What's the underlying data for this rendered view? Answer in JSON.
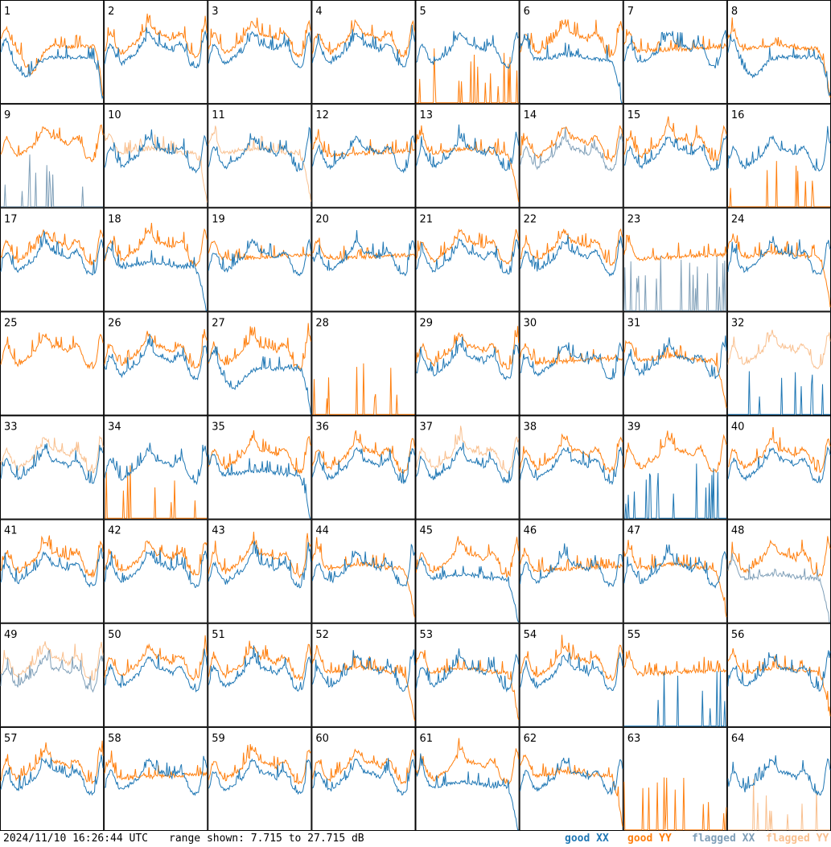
{
  "footer": {
    "timestamp": "2024/11/10 16:26:44 UTC",
    "range_text": "range shown: 7.715 to 27.715 dB"
  },
  "legend": {
    "good_xx": "good XX",
    "good_yy": "good YY",
    "flagged_xx": "flagged XX",
    "flagged_yy": "flagged YY"
  },
  "colors": {
    "good_xx": "#1f77b4",
    "good_yy": "#ff7f0e",
    "flagged_xx": "#7f9fb8",
    "flagged_yy": "#f9c08f",
    "frame": "#000000"
  },
  "chart_data": {
    "type": "line",
    "grid": "8x8 small multiples",
    "ylim_db": [
      7.715,
      27.715
    ],
    "tiles": [
      {
        "n": "1",
        "xx": "good",
        "yy": "good",
        "xx_shape": "rollhigh",
        "yy_shape": "dipmid"
      },
      {
        "n": "2",
        "xx": "good",
        "yy": "good",
        "xx_shape": "normal",
        "yy_shape": "normal"
      },
      {
        "n": "3",
        "xx": "good",
        "yy": "good",
        "xx_shape": "normal",
        "yy_shape": "normal"
      },
      {
        "n": "4",
        "xx": "good",
        "yy": "good",
        "xx_shape": "normal",
        "yy_shape": "normal"
      },
      {
        "n": "5",
        "xx": "good",
        "yy": "good",
        "xx_shape": "normal",
        "yy_shape": "dead"
      },
      {
        "n": "6",
        "xx": "good",
        "yy": "good",
        "xx_shape": "rolloff",
        "yy_shape": "normal"
      },
      {
        "n": "7",
        "xx": "good",
        "yy": "good",
        "xx_shape": "normal",
        "yy_shape": "flat"
      },
      {
        "n": "8",
        "xx": "good",
        "yy": "good",
        "xx_shape": "rollhigh",
        "yy_shape": "rolloff"
      },
      {
        "n": "9",
        "xx": "flagged",
        "yy": "good",
        "xx_shape": "dead",
        "yy_shape": "normal"
      },
      {
        "n": "10",
        "xx": "good",
        "yy": "flagged",
        "xx_shape": "normal",
        "yy_shape": "rolloff"
      },
      {
        "n": "11",
        "xx": "good",
        "yy": "flagged",
        "xx_shape": "normal",
        "yy_shape": "rolloff"
      },
      {
        "n": "12",
        "xx": "good",
        "yy": "good",
        "xx_shape": "normal",
        "yy_shape": "flat"
      },
      {
        "n": "13",
        "xx": "good",
        "yy": "good",
        "xx_shape": "normal",
        "yy_shape": "rolloff"
      },
      {
        "n": "14",
        "xx": "flagged",
        "yy": "good",
        "xx_shape": "normal",
        "yy_shape": "normal"
      },
      {
        "n": "15",
        "xx": "good",
        "yy": "good",
        "xx_shape": "normal",
        "yy_shape": "normal"
      },
      {
        "n": "16",
        "xx": "good",
        "yy": "good",
        "xx_shape": "normal",
        "yy_shape": "dead"
      },
      {
        "n": "17",
        "xx": "good",
        "yy": "good",
        "xx_shape": "normal",
        "yy_shape": "normal"
      },
      {
        "n": "18",
        "xx": "good",
        "yy": "good",
        "xx_shape": "rolloff",
        "yy_shape": "normal"
      },
      {
        "n": "19",
        "xx": "good",
        "yy": "good",
        "xx_shape": "normal",
        "yy_shape": "flat"
      },
      {
        "n": "20",
        "xx": "good",
        "yy": "good",
        "xx_shape": "normal",
        "yy_shape": "flat"
      },
      {
        "n": "21",
        "xx": "good",
        "yy": "good",
        "xx_shape": "normal",
        "yy_shape": "normal"
      },
      {
        "n": "22",
        "xx": "good",
        "yy": "good",
        "xx_shape": "normal",
        "yy_shape": "normal"
      },
      {
        "n": "23",
        "xx": "flagged",
        "yy": "good",
        "xx_shape": "dead",
        "yy_shape": "flat"
      },
      {
        "n": "24",
        "xx": "good",
        "yy": "good",
        "xx_shape": "normal",
        "yy_shape": "rolloff"
      },
      {
        "n": "25",
        "xx": "none",
        "yy": "good",
        "xx_shape": "none",
        "yy_shape": "normal"
      },
      {
        "n": "26",
        "xx": "good",
        "yy": "good",
        "xx_shape": "normal",
        "yy_shape": "normal"
      },
      {
        "n": "27",
        "xx": "good",
        "yy": "good",
        "xx_shape": "rollhigh",
        "yy_shape": "normal"
      },
      {
        "n": "28",
        "xx": "none",
        "yy": "good",
        "xx_shape": "none",
        "yy_shape": "dead"
      },
      {
        "n": "29",
        "xx": "good",
        "yy": "good",
        "xx_shape": "normal",
        "yy_shape": "normal"
      },
      {
        "n": "30",
        "xx": "good",
        "yy": "good",
        "xx_shape": "normal",
        "yy_shape": "flat"
      },
      {
        "n": "31",
        "xx": "good",
        "yy": "good",
        "xx_shape": "normal",
        "yy_shape": "rolloff"
      },
      {
        "n": "32",
        "xx": "good",
        "yy": "flagged",
        "xx_shape": "dead",
        "yy_shape": "normal"
      },
      {
        "n": "33",
        "xx": "good",
        "yy": "flagged",
        "xx_shape": "normal",
        "yy_shape": "normal"
      },
      {
        "n": "34",
        "xx": "good",
        "yy": "good",
        "xx_shape": "normal",
        "yy_shape": "dead"
      },
      {
        "n": "35",
        "xx": "good",
        "yy": "good",
        "xx_shape": "rolloff",
        "yy_shape": "normal"
      },
      {
        "n": "36",
        "xx": "good",
        "yy": "good",
        "xx_shape": "normal",
        "yy_shape": "normal"
      },
      {
        "n": "37",
        "xx": "good",
        "yy": "flagged",
        "xx_shape": "normal",
        "yy_shape": "normal"
      },
      {
        "n": "38",
        "xx": "good",
        "yy": "good",
        "xx_shape": "normal",
        "yy_shape": "normal"
      },
      {
        "n": "39",
        "xx": "good",
        "yy": "good",
        "xx_shape": "dead",
        "yy_shape": "normal"
      },
      {
        "n": "40",
        "xx": "good",
        "yy": "good",
        "xx_shape": "normal",
        "yy_shape": "normal"
      },
      {
        "n": "41",
        "xx": "good",
        "yy": "good",
        "xx_shape": "normal",
        "yy_shape": "normal"
      },
      {
        "n": "42",
        "xx": "good",
        "yy": "good",
        "xx_shape": "normal",
        "yy_shape": "normal"
      },
      {
        "n": "43",
        "xx": "good",
        "yy": "good",
        "xx_shape": "normal",
        "yy_shape": "normal"
      },
      {
        "n": "44",
        "xx": "good",
        "yy": "good",
        "xx_shape": "normal",
        "yy_shape": "rolloff"
      },
      {
        "n": "45",
        "xx": "good",
        "yy": "good",
        "xx_shape": "rolloff",
        "yy_shape": "normal"
      },
      {
        "n": "46",
        "xx": "good",
        "yy": "good",
        "xx_shape": "normal",
        "yy_shape": "flat"
      },
      {
        "n": "47",
        "xx": "good",
        "yy": "good",
        "xx_shape": "normal",
        "yy_shape": "rolloff"
      },
      {
        "n": "48",
        "xx": "flagged",
        "yy": "good",
        "xx_shape": "rolloff",
        "yy_shape": "normal"
      },
      {
        "n": "49",
        "xx": "flagged",
        "yy": "flagged",
        "xx_shape": "normal",
        "yy_shape": "normal"
      },
      {
        "n": "50",
        "xx": "good",
        "yy": "good",
        "xx_shape": "normal",
        "yy_shape": "normal"
      },
      {
        "n": "51",
        "xx": "good",
        "yy": "good",
        "xx_shape": "normal",
        "yy_shape": "normal"
      },
      {
        "n": "52",
        "xx": "good",
        "yy": "good",
        "xx_shape": "normal",
        "yy_shape": "rolloff"
      },
      {
        "n": "53",
        "xx": "good",
        "yy": "good",
        "xx_shape": "normal",
        "yy_shape": "rolloff"
      },
      {
        "n": "54",
        "xx": "good",
        "yy": "good",
        "xx_shape": "normal",
        "yy_shape": "normal"
      },
      {
        "n": "55",
        "xx": "good",
        "yy": "good",
        "xx_shape": "dead",
        "yy_shape": "flat"
      },
      {
        "n": "56",
        "xx": "good",
        "yy": "good",
        "xx_shape": "normal",
        "yy_shape": "rolloff"
      },
      {
        "n": "57",
        "xx": "good",
        "yy": "good",
        "xx_shape": "normal",
        "yy_shape": "normal"
      },
      {
        "n": "58",
        "xx": "good",
        "yy": "good",
        "xx_shape": "normal",
        "yy_shape": "flat"
      },
      {
        "n": "59",
        "xx": "good",
        "yy": "good",
        "xx_shape": "normal",
        "yy_shape": "normal"
      },
      {
        "n": "60",
        "xx": "good",
        "yy": "good",
        "xx_shape": "normal",
        "yy_shape": "normal"
      },
      {
        "n": "61",
        "xx": "good",
        "yy": "good",
        "xx_shape": "rolloff",
        "yy_shape": "normal"
      },
      {
        "n": "62",
        "xx": "good",
        "yy": "good",
        "xx_shape": "normal",
        "yy_shape": "rolloff"
      },
      {
        "n": "63",
        "xx": "none",
        "yy": "good",
        "xx_shape": "none",
        "yy_shape": "dead"
      },
      {
        "n": "64",
        "xx": "good",
        "yy": "flagged",
        "xx_shape": "normal",
        "yy_shape": "dead"
      }
    ]
  }
}
